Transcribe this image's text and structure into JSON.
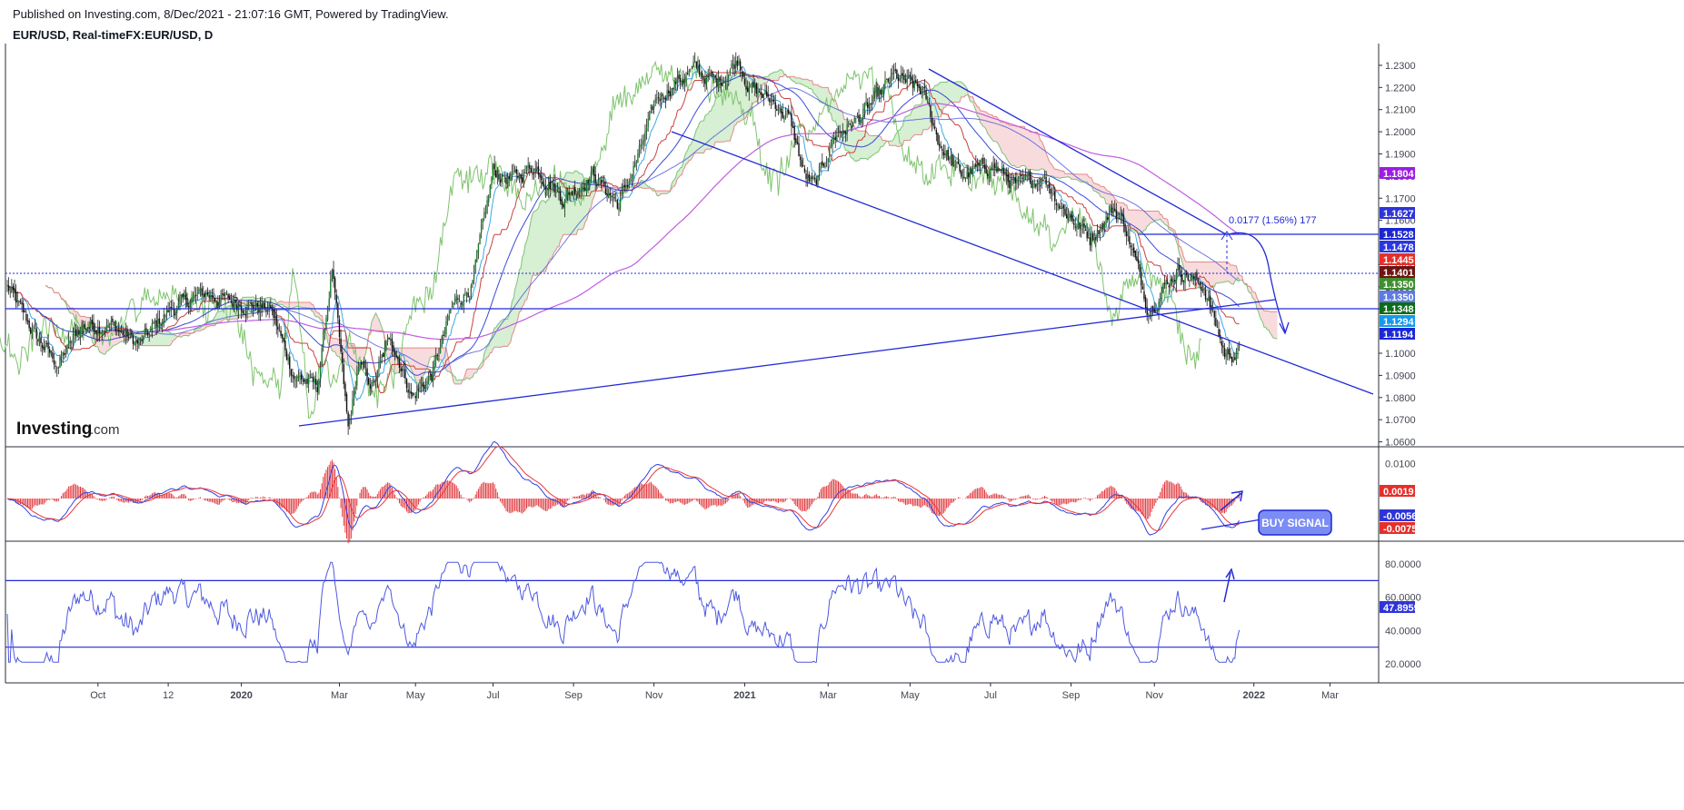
{
  "header": {
    "published": "Published on Investing.com, 8/Dec/2021 - 21:07:16 GMT, Powered by TradingView.",
    "symbol": "EUR/USD, Real-timeFX:EUR/USD, D"
  },
  "logo": {
    "brand": "Investing",
    "suffix": ".com"
  },
  "colors": {
    "trend_line": "#2229d6",
    "candle": "#1e7a2e",
    "macd_line": "#3140e0",
    "signal_line": "#e8363b",
    "histogram": "#e0393e",
    "rsi_line": "#4e58e0",
    "cloud_bull": "#c9e9c4",
    "cloud_bear": "#f6cfd0",
    "ma200": "#c05ce0"
  },
  "annotations": {
    "measure_label": "0.0177 (1.56%) 177",
    "buy_signal": "BUY SIGNAL"
  },
  "chart_data": [
    {
      "type": "line",
      "panel": "price",
      "instrument": "EUR/USD",
      "timeframe": "D",
      "x_tick_labels": [
        "Oct",
        "12",
        "2020",
        "Mar",
        "May",
        "Jul",
        "Sep",
        "Nov",
        "2021",
        "Mar",
        "May",
        "Jul",
        "Sep",
        "Nov",
        "2022",
        "Mar"
      ],
      "x_tick_bold": [
        false,
        false,
        true,
        false,
        false,
        false,
        false,
        false,
        true,
        false,
        false,
        false,
        false,
        false,
        true,
        false
      ],
      "x_tick_index": [
        62,
        110,
        160,
        227,
        279,
        332,
        387,
        442,
        504,
        561,
        617,
        672,
        727,
        784,
        852,
        904
      ],
      "y_ticks": [
        1.06,
        1.07,
        1.08,
        1.09,
        1.1,
        1.12,
        1.13,
        1.14,
        1.16,
        1.17,
        1.18,
        1.19,
        1.2,
        1.21,
        1.22,
        1.23
      ],
      "y_tick_labels": [
        "1.0600",
        "1.0700",
        "1.0800",
        "1.0900",
        "1.1000",
        "1.1200",
        "1.1300",
        "1.1400",
        "1.1600",
        "1.1700",
        "1.1800",
        "1.1900",
        "1.2000",
        "1.2100",
        "1.2200",
        "1.2300"
      ],
      "ylim": [
        1.0585,
        1.2345
      ],
      "series": [
        {
          "anchors_index": [
            0,
            20,
            35,
            50,
            70,
            90,
            110,
            135,
            155,
            180,
            196,
            212,
            222,
            233,
            240,
            250,
            262,
            277,
            290,
            305,
            318,
            332,
            345,
            360,
            380,
            400,
            418,
            432,
            444,
            456,
            470,
            485,
            500,
            507,
            525,
            535,
            545,
            552,
            565,
            580,
            592,
            606,
            626,
            637,
            652,
            674,
            690,
            708,
            722,
            740,
            756,
            764,
            780,
            800,
            818,
            832,
            842,
            850,
            856,
            862,
            875,
            890,
            904
          ],
          "anchors_close": [
            1.13,
            1.107,
            1.095,
            1.112,
            1.113,
            1.104,
            1.119,
            1.127,
            1.123,
            1.12,
            1.09,
            1.085,
            1.138,
            1.065,
            1.095,
            1.085,
            1.108,
            1.08,
            1.09,
            1.122,
            1.131,
            1.182,
            1.178,
            1.185,
            1.17,
            1.181,
            1.167,
            1.19,
            1.215,
            1.222,
            1.228,
            1.222,
            1.233,
            1.22,
            1.213,
            1.205,
            1.18,
            1.175,
            1.198,
            1.205,
            1.213,
            1.225,
            1.218,
            1.195,
            1.18,
            1.185,
            1.175,
            1.18,
            1.165,
            1.152,
            1.165,
            1.158,
            1.12,
            1.138,
            1.13,
            1.1,
            1.1,
            1.1,
            1.1,
            1.1,
            1.1,
            1.1,
            1.1
          ]
        }
      ],
      "price_badges": [
        {
          "label": "1.1804",
          "value": 1.1804,
          "color": "#9b1ee0"
        },
        {
          "label": "1.1627",
          "value": 1.1627,
          "color": "#2f34d8"
        },
        {
          "label": "1.1528",
          "value": 1.1528,
          "color": "#1a27d0"
        },
        {
          "label": "1.1478",
          "value": 1.1478,
          "color": "#2b36df"
        },
        {
          "label": "1.1445",
          "value": 1.1445,
          "color": "#e3302b"
        },
        {
          "label": "1.1401",
          "value": 1.1401,
          "color": "#6e1414"
        },
        {
          "label": "1.1350",
          "value": 1.135,
          "color": "#3f8f2e"
        },
        {
          "label": "1.1350",
          "value": 1.135,
          "color": "#5e79e0"
        },
        {
          "label": "1.1348",
          "value": 1.1348,
          "color": "#0d6b1a"
        },
        {
          "label": "1.1294",
          "value": 1.1294,
          "color": "#1599ea"
        },
        {
          "label": "1.1194",
          "value": 1.1194,
          "color": "#1b28d8"
        }
      ],
      "horizontal_levels": [
        1.132,
        1.1528,
        1.1401
      ]
    },
    {
      "type": "line",
      "panel": "macd",
      "y_ticks": [
        0.01
      ],
      "y_tick_labels": [
        "0.0100"
      ],
      "ylim": [
        -0.0125,
        0.0155
      ],
      "series": [
        {
          "name_role": "macd"
        },
        {
          "name_role": "signal"
        },
        {
          "name_role": "histogram"
        }
      ],
      "value_badges": [
        {
          "label": "0.0019",
          "value": 0.0019,
          "color": "#e3302b"
        },
        {
          "label": "-0.0056",
          "value": -0.0056,
          "color": "#2f34d8"
        },
        {
          "label": "-0.0075",
          "value": -0.0075,
          "color": "#e3302b"
        }
      ]
    },
    {
      "type": "line",
      "panel": "rsi",
      "y_ticks": [
        20,
        40,
        60,
        80
      ],
      "y_tick_labels": [
        "20.0000",
        "40.0000",
        "60.0000",
        "80.0000"
      ],
      "ylim": [
        18,
        82
      ],
      "levels": [
        70,
        30
      ],
      "value_badges": [
        {
          "label": "47.8959",
          "value": 47.8959,
          "color": "#2f34d8"
        }
      ]
    }
  ]
}
